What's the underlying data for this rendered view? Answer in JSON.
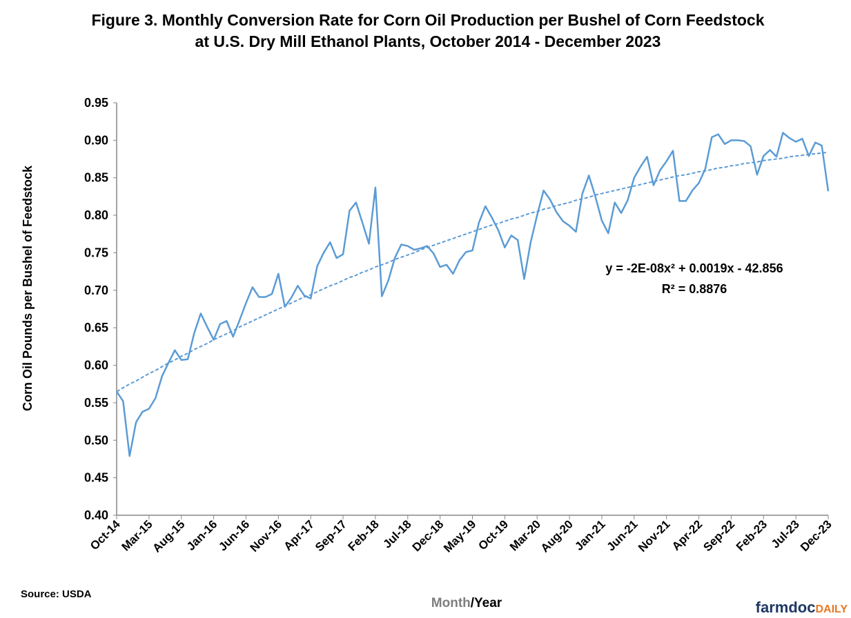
{
  "chart_data": {
    "type": "line",
    "title": "Figure 3. Monthly Conversion Rate for Corn Oil Production per Bushel of Corn Feedstock at U.S. Dry Mill Ethanol Plants, October 2014 - December 2023",
    "ylabel": "Corn Oil Pounds per Bushel of Feedstock",
    "xlabel_parts": [
      "Month",
      "/Year"
    ],
    "source": "Source: USDA",
    "logo": [
      "farmdoc",
      "DAILY"
    ],
    "annotations": [
      "y = -2E-08x² + 0.0019x - 42.856",
      "R² = 0.8876"
    ],
    "categories": [
      "Oct-14",
      null,
      null,
      null,
      null,
      "Mar-15",
      null,
      null,
      null,
      null,
      "Aug-15",
      null,
      null,
      null,
      null,
      "Jan-16",
      null,
      null,
      null,
      null,
      "Jun-16",
      null,
      null,
      null,
      null,
      "Nov-16",
      null,
      null,
      null,
      null,
      "Apr-17",
      null,
      null,
      null,
      null,
      "Sep-17",
      null,
      null,
      null,
      null,
      "Feb-18",
      null,
      null,
      null,
      null,
      "Jul-18",
      null,
      null,
      null,
      null,
      "Dec-18",
      null,
      null,
      null,
      null,
      "May-19",
      null,
      null,
      null,
      null,
      "Oct-19",
      null,
      null,
      null,
      null,
      "Mar-20",
      null,
      null,
      null,
      null,
      "Aug-20",
      null,
      null,
      null,
      null,
      "Jan-21",
      null,
      null,
      null,
      null,
      "Jun-21",
      null,
      null,
      null,
      null,
      "Nov-21",
      null,
      null,
      null,
      null,
      "Apr-22",
      null,
      null,
      null,
      null,
      "Sep-22",
      null,
      null,
      null,
      null,
      "Feb-23",
      null,
      null,
      null,
      null,
      "Jul-23",
      null,
      null,
      null,
      null,
      "Dec-23"
    ],
    "series": [
      {
        "color": "#5b9bd5",
        "dashed": false,
        "values": [
          0.565,
          0.552,
          0.479,
          0.524,
          0.538,
          0.542,
          0.556,
          0.585,
          0.603,
          0.62,
          0.607,
          0.608,
          0.643,
          0.669,
          0.651,
          0.634,
          0.655,
          0.659,
          0.638,
          0.66,
          0.683,
          0.704,
          0.691,
          0.691,
          0.695,
          0.722,
          0.678,
          0.69,
          0.706,
          0.693,
          0.689,
          0.732,
          0.75,
          0.764,
          0.743,
          0.748,
          0.806,
          0.817,
          0.79,
          0.762,
          0.837,
          0.692,
          0.713,
          0.743,
          0.761,
          0.759,
          0.754,
          0.756,
          0.759,
          0.749,
          0.731,
          0.734,
          0.722,
          0.74,
          0.751,
          0.753,
          0.79,
          0.812,
          0.797,
          0.78,
          0.757,
          0.773,
          0.767,
          0.715,
          0.764,
          0.8,
          0.833,
          0.821,
          0.804,
          0.792,
          0.786,
          0.778,
          0.829,
          0.853,
          0.825,
          0.793,
          0.776,
          0.817,
          0.803,
          0.82,
          0.85,
          0.865,
          0.878,
          0.84,
          0.86,
          0.872,
          0.886,
          0.819,
          0.819,
          0.833,
          0.843,
          0.862,
          0.904,
          0.908,
          0.895,
          0.9,
          0.9,
          0.899,
          0.892,
          0.854,
          0.879,
          0.887,
          0.878,
          0.91,
          0.903,
          0.898,
          0.902,
          0.879,
          0.897,
          0.893,
          0.832
        ]
      },
      {
        "color": "#5b9bd5",
        "dashed": true,
        "values": [
          0.565,
          0.57,
          0.575,
          0.579,
          0.584,
          0.589,
          0.593,
          0.598,
          0.603,
          0.607,
          0.612,
          0.616,
          0.621,
          0.625,
          0.629,
          0.634,
          0.638,
          0.642,
          0.646,
          0.651,
          0.655,
          0.659,
          0.663,
          0.667,
          0.671,
          0.675,
          0.679,
          0.683,
          0.687,
          0.691,
          0.694,
          0.698,
          0.702,
          0.706,
          0.709,
          0.713,
          0.717,
          0.72,
          0.724,
          0.727,
          0.731,
          0.734,
          0.737,
          0.741,
          0.744,
          0.747,
          0.75,
          0.754,
          0.757,
          0.76,
          0.763,
          0.766,
          0.769,
          0.772,
          0.775,
          0.778,
          0.781,
          0.784,
          0.787,
          0.789,
          0.792,
          0.795,
          0.797,
          0.8,
          0.803,
          0.805,
          0.808,
          0.81,
          0.813,
          0.815,
          0.817,
          0.82,
          0.822,
          0.824,
          0.827,
          0.829,
          0.831,
          0.833,
          0.835,
          0.837,
          0.839,
          0.841,
          0.843,
          0.845,
          0.847,
          0.849,
          0.851,
          0.853,
          0.854,
          0.856,
          0.858,
          0.859,
          0.861,
          0.863,
          0.864,
          0.866,
          0.867,
          0.869,
          0.87,
          0.871,
          0.873,
          0.874,
          0.875,
          0.876,
          0.878,
          0.879,
          0.88,
          0.881,
          0.882,
          0.883,
          0.884
        ]
      }
    ],
    "ylim": [
      0.4,
      0.95
    ],
    "yticks": [
      {
        "value": 0.4,
        "label": "0.40"
      },
      0.45,
      {
        "value": 0.5,
        "label": "0.50"
      },
      0.55,
      {
        "value": 0.6,
        "label": "0.60"
      },
      0.65,
      {
        "value": 0.7,
        "label": "0.70"
      },
      0.75,
      {
        "value": 0.8,
        "label": "0.80"
      },
      0.85,
      {
        "value": 0.9,
        "label": "0.90"
      },
      0.95
    ],
    "grid": false
  }
}
